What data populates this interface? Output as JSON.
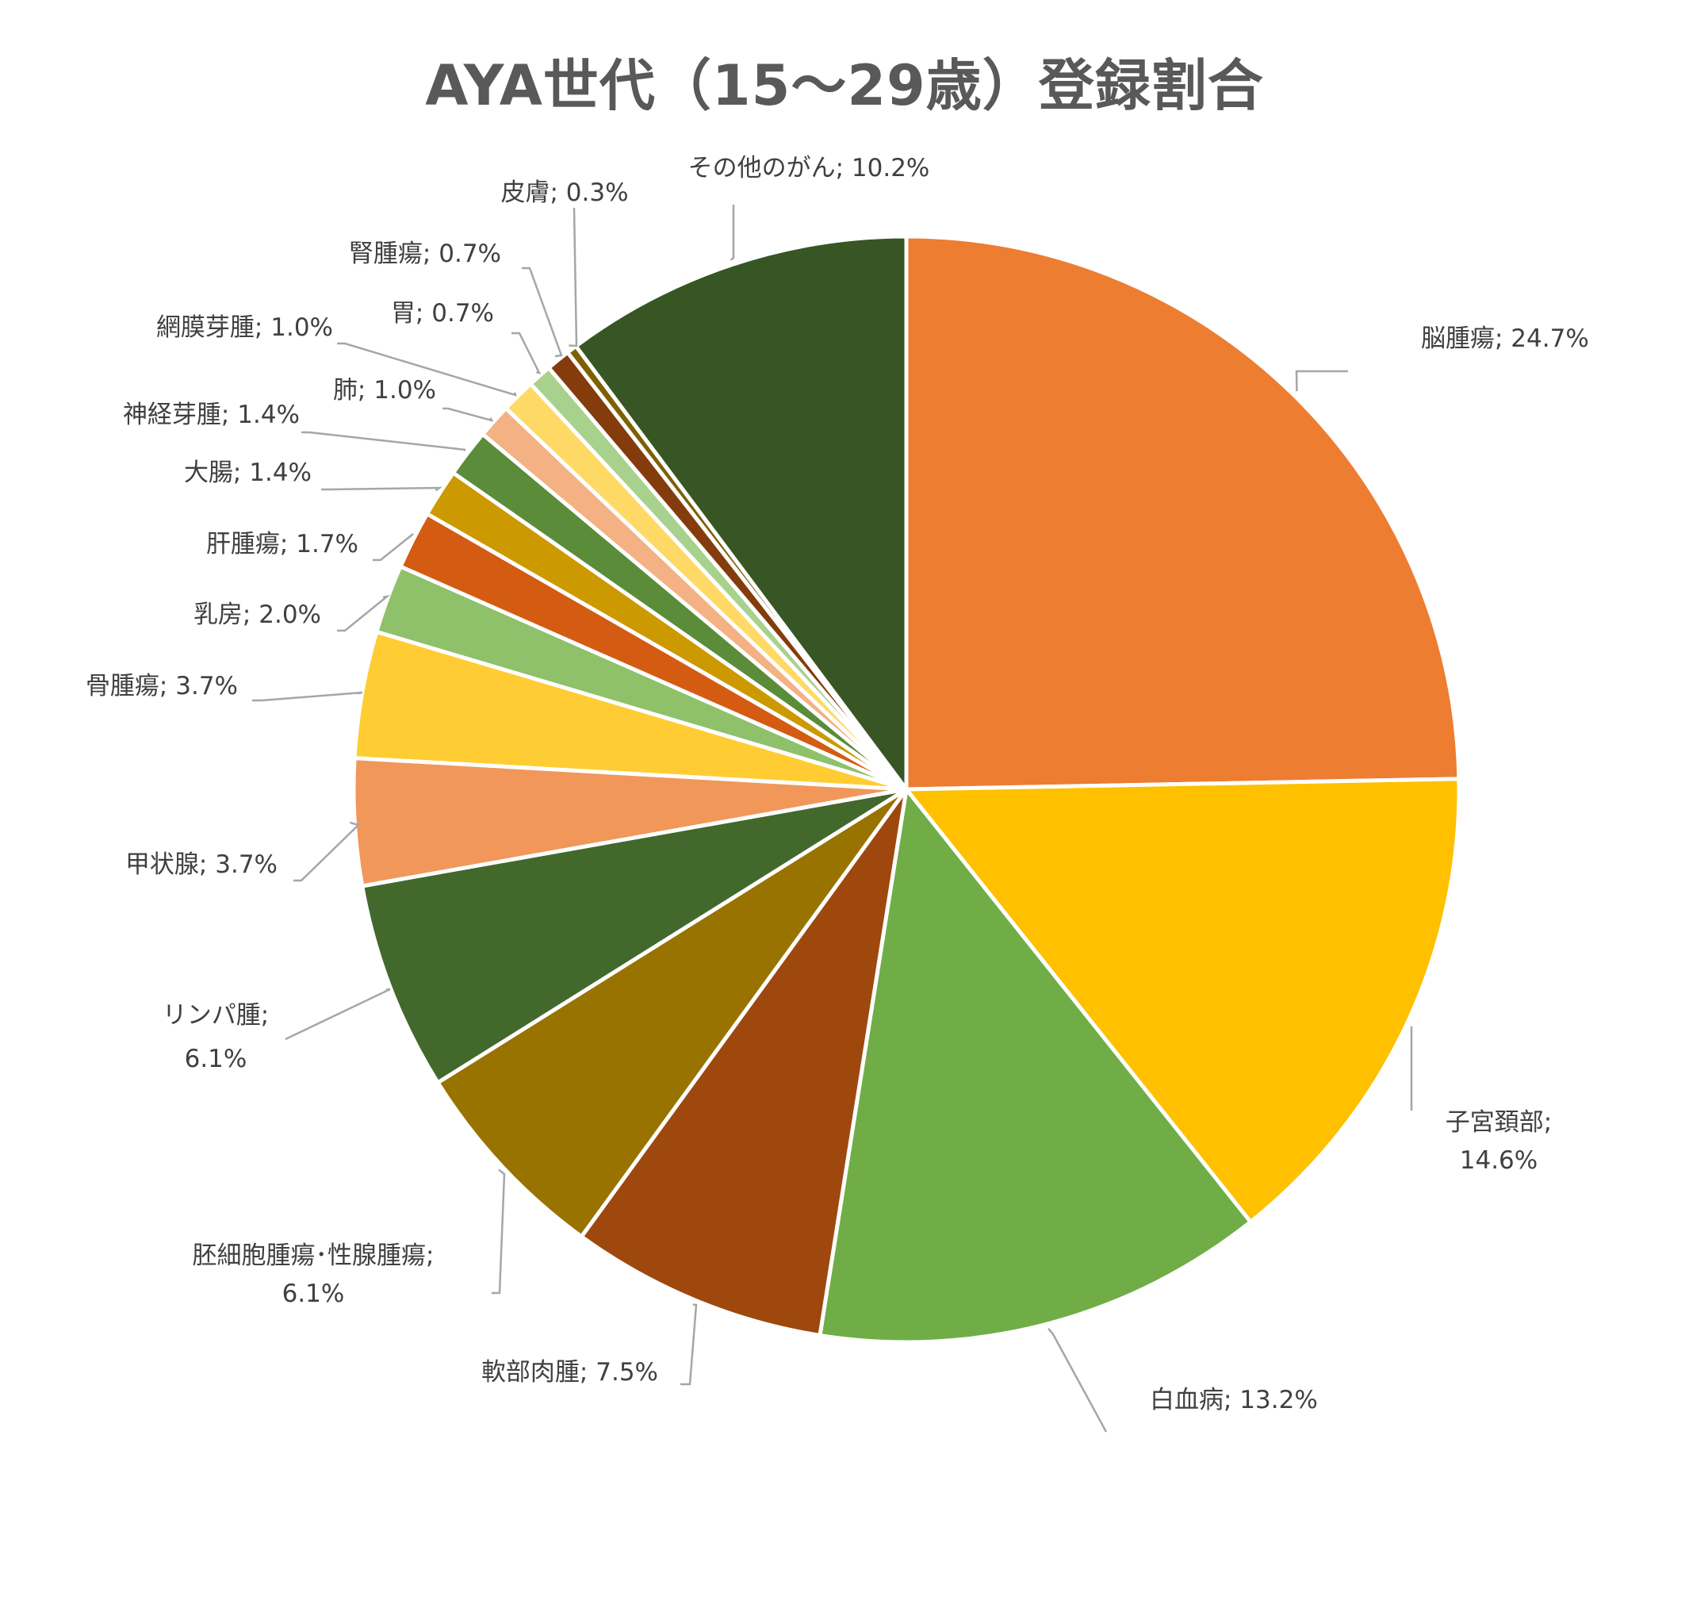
{
  "chart_data": {
    "type": "pie",
    "title": "AYA世代（15～29歳）登録割合",
    "slices": [
      {
        "name": "脳腫瘍",
        "value": 24.7,
        "label": "脳腫瘍; 24.7%",
        "color": "#ED7D31"
      },
      {
        "name": "子宮頚部",
        "value": 14.6,
        "label_lines": [
          "子宮頚部;",
          "14.6%"
        ],
        "color": "#FFC000"
      },
      {
        "name": "白血病",
        "value": 13.2,
        "label": "白血病; 13.2%",
        "color": "#70AD47"
      },
      {
        "name": "軟部肉腫",
        "value": 7.5,
        "label": "軟部肉腫; 7.5%",
        "color": "#9E480E"
      },
      {
        "name": "胚細胞腫瘍・性腺腫瘍",
        "value": 6.1,
        "label_lines": [
          "胚細胞腫瘍･性腺腫瘍;",
          "6.1%"
        ],
        "color": "#997300"
      },
      {
        "name": "リンパ腫",
        "value": 6.1,
        "label_lines": [
          "リンパ腫;",
          "6.1%"
        ],
        "color": "#43682B"
      },
      {
        "name": "甲状腺",
        "value": 3.7,
        "label": "甲状腺; 3.7%",
        "color": "#F1975A"
      },
      {
        "name": "骨腫瘍",
        "value": 3.7,
        "label": "骨腫瘍; 3.7%",
        "color": "#FFCD33"
      },
      {
        "name": "乳房",
        "value": 2.0,
        "label": "乳房; 2.0%",
        "color": "#8FC06A"
      },
      {
        "name": "肝腫瘍",
        "value": 1.7,
        "label": "肝腫瘍; 1.7%",
        "color": "#D35C12"
      },
      {
        "name": "大腸",
        "value": 1.4,
        "label": "大腸; 1.4%",
        "color": "#CC9900"
      },
      {
        "name": "神経芽腫",
        "value": 1.4,
        "label": "神経芽腫; 1.4%",
        "color": "#5B8C39"
      },
      {
        "name": "肺",
        "value": 1.0,
        "label": "肺; 1.0%",
        "color": "#F4B183"
      },
      {
        "name": "網膜芽腫",
        "value": 1.0,
        "label": "網膜芽腫; 1.0%",
        "color": "#FFD966"
      },
      {
        "name": "胃",
        "value": 0.7,
        "label": "胃; 0.7%",
        "color": "#A9D18E"
      },
      {
        "name": "腎腫瘍",
        "value": 0.7,
        "label": "腎腫瘍; 0.7%",
        "color": "#843C0C"
      },
      {
        "name": "皮膚",
        "value": 0.3,
        "label": "皮膚; 0.3%",
        "color": "#7F6000"
      },
      {
        "name": "その他のがん",
        "value": 10.2,
        "label": "その他のがん; 10.2%",
        "color": "#375623"
      }
    ],
    "start": "12 o'clock",
    "direction": "clockwise",
    "legend": "none",
    "data_labels": "outside with leader lines"
  }
}
